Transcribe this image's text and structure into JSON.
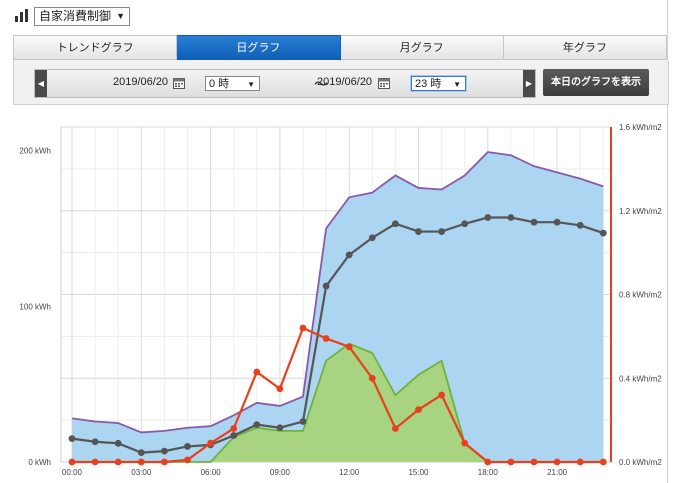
{
  "header": {
    "title_select": "自家消費制御"
  },
  "tabs": [
    {
      "label": "トレンドグラフ",
      "active": false
    },
    {
      "label": "日グラフ",
      "active": true
    },
    {
      "label": "月グラフ",
      "active": false
    },
    {
      "label": "年グラフ",
      "active": false
    }
  ],
  "range": {
    "start_date": "2019/06/20",
    "start_hour": "0 時",
    "separator": "～",
    "end_date": "2019/06/20",
    "end_hour": "23 時"
  },
  "show_button": "本日のグラフを表示",
  "colors": {
    "tab_active": "#1a6fc8",
    "blue_fill": "#a8d3f0",
    "blue_line": "#8a5aa8",
    "green_fill": "#a8d47a",
    "green_line": "#6db33f",
    "dark_line": "#555555",
    "red_line": "#e8401c",
    "right_axis": "#e8401c"
  },
  "chart_data": {
    "type": "area",
    "x": [
      "00:00",
      "01:00",
      "02:00",
      "03:00",
      "04:00",
      "05:00",
      "06:00",
      "07:00",
      "08:00",
      "09:00",
      "10:00",
      "11:00",
      "12:00",
      "13:00",
      "14:00",
      "15:00",
      "16:00",
      "17:00",
      "18:00",
      "19:00",
      "20:00",
      "21:00",
      "22:00",
      "23:00"
    ],
    "x_tick_labels": [
      "00:00",
      "03:00",
      "06:00",
      "09:00",
      "12:00",
      "15:00",
      "18:00",
      "21:00"
    ],
    "y_left": {
      "unit": "kWh",
      "ticks": [
        "0 kWh",
        "100 kWh",
        "200 kWh"
      ],
      "ylim": [
        0,
        210
      ]
    },
    "y_right": {
      "unit": "kWh/m2",
      "ticks": [
        "0.0 kWh/m2",
        "0.4 kWh/m2",
        "0.8 kWh/m2",
        "1.2 kWh/m2",
        "1.6 kWh/m2"
      ],
      "ylim": [
        0,
        1.6
      ]
    },
    "grid": true,
    "series": [
      {
        "kind": "area",
        "axis": "left",
        "fill": "#a8d3f0",
        "line": "#8a5aa8",
        "values": [
          28,
          26,
          25,
          19,
          20,
          22,
          23,
          30,
          38,
          36,
          42,
          150,
          170,
          173,
          184,
          176,
          175,
          184,
          199,
          197,
          190,
          186,
          182,
          177
        ]
      },
      {
        "kind": "area",
        "axis": "left",
        "fill": "#a8d47a",
        "line": "#6db33f",
        "values": [
          0,
          0,
          0,
          0,
          0,
          0,
          0,
          16,
          22,
          20,
          20,
          65,
          76,
          70,
          43,
          56,
          65,
          12,
          0,
          0,
          0,
          0,
          0,
          0
        ]
      },
      {
        "kind": "line",
        "axis": "left",
        "color": "#555555",
        "values": [
          15,
          13,
          12,
          6,
          7,
          10,
          11,
          17,
          24,
          22,
          26,
          113,
          133,
          144,
          153,
          148,
          148,
          153,
          157,
          157,
          154,
          154,
          152,
          147
        ]
      },
      {
        "kind": "line",
        "axis": "right",
        "color": "#e8401c",
        "values": [
          0.0,
          0.0,
          0.0,
          0.0,
          0.0,
          0.01,
          0.09,
          0.16,
          0.43,
          0.35,
          0.64,
          0.59,
          0.55,
          0.4,
          0.16,
          0.25,
          0.32,
          0.09,
          0.0,
          0.0,
          0.0,
          0.0,
          0.0,
          0.0
        ]
      }
    ]
  }
}
